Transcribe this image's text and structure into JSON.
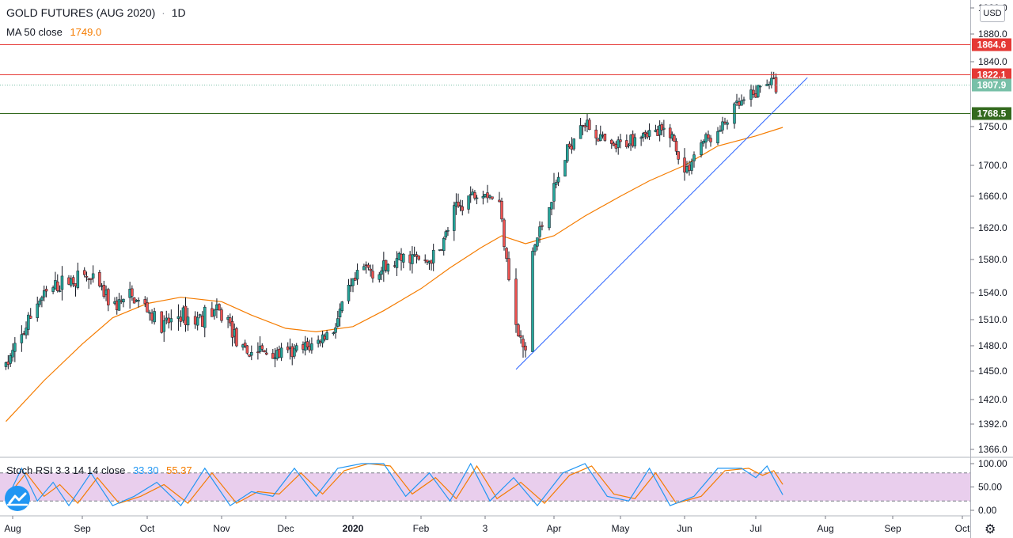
{
  "header": {
    "symbol": "GOLD FUTURES (AUG 2020)",
    "separator": "·",
    "interval": "1D",
    "ma_label": "MA 50 close",
    "ma_value": "1749.0",
    "stoch_label": "Stoch RSI 3 3 14 14 close",
    "stoch_k": "33.30",
    "stoch_d": "55.37"
  },
  "currency": "USD",
  "colors": {
    "up": "#26a69a",
    "down": "#ef5350",
    "ma": "#f57c00",
    "trendline": "#2962ff",
    "resistance": "#e53935",
    "support": "#33691e",
    "last_price": "#78c0a8",
    "stoch_k": "#2196f3",
    "stoch_d": "#f57c00",
    "stoch_band": "#e1bee7"
  },
  "chart_data": [
    {
      "type": "candlestick",
      "title": "GOLD FUTURES (AUG 2020)",
      "interval": "1D",
      "y_axis_ticks": [
        1920.0,
        1880.0,
        1840.0,
        1750.0,
        1700.0,
        1660.0,
        1620.0,
        1580.0,
        1540.0,
        1510.0,
        1480.0,
        1450.0,
        1420.0,
        1392.0,
        1366.0
      ],
      "ylim": [
        1366,
        1920
      ],
      "x_axis_ticks": [
        "Aug",
        "Sep",
        "Oct",
        "Nov",
        "Dec",
        "2020",
        "Feb",
        "3",
        "Apr",
        "May",
        "Jun",
        "Jul",
        "Aug",
        "Sep",
        "Oct"
      ],
      "x_axis_tick_dates": [
        "2019-08-01",
        "2019-09-01",
        "2019-10-01",
        "2019-11-01",
        "2019-12-01",
        "2020-01-01",
        "2020-02-01",
        "2020-03-03",
        "2020-04-01",
        "2020-05-01",
        "2020-06-01",
        "2020-07-01",
        "2020-08-01",
        "2020-09-01",
        "2020-10-01"
      ],
      "price_levels": [
        {
          "label": "1864.6",
          "value": 1864.6,
          "color": "#e53935"
        },
        {
          "label": "1822.1",
          "value": 1822.1,
          "color": "#e53935"
        },
        {
          "label": "1807.9",
          "value": 1807.9,
          "color": "#78c0a8",
          "kind": "last"
        },
        {
          "label": "1768.5",
          "value": 1768.5,
          "color": "#33691e"
        }
      ],
      "trendline": {
        "start": [
          "2020-03-16",
          1452
        ],
        "end": [
          "2020-07-24",
          1818
        ]
      },
      "close_series": {
        "anchors": [
          [
            "2019-07-29",
            1456
          ],
          [
            "2019-08-05",
            1490
          ],
          [
            "2019-08-12",
            1530
          ],
          [
            "2019-08-19",
            1545
          ],
          [
            "2019-08-26",
            1555
          ],
          [
            "2019-09-02",
            1560
          ],
          [
            "2019-09-09",
            1545
          ],
          [
            "2019-09-16",
            1525
          ],
          [
            "2019-09-23",
            1535
          ],
          [
            "2019-09-30",
            1525
          ],
          [
            "2019-10-07",
            1500
          ],
          [
            "2019-10-14",
            1515
          ],
          [
            "2019-10-21",
            1510
          ],
          [
            "2019-10-28",
            1520
          ],
          [
            "2019-11-04",
            1510
          ],
          [
            "2019-11-11",
            1470
          ],
          [
            "2019-11-18",
            1475
          ],
          [
            "2019-11-25",
            1470
          ],
          [
            "2019-12-02",
            1470
          ],
          [
            "2019-12-09",
            1475
          ],
          [
            "2019-12-16",
            1485
          ],
          [
            "2019-12-23",
            1500
          ],
          [
            "2019-12-30",
            1540
          ],
          [
            "2020-01-06",
            1570
          ],
          [
            "2020-01-13",
            1565
          ],
          [
            "2020-01-20",
            1575
          ],
          [
            "2020-01-27",
            1585
          ],
          [
            "2020-02-03",
            1575
          ],
          [
            "2020-02-10",
            1590
          ],
          [
            "2020-02-17",
            1640
          ],
          [
            "2020-02-24",
            1660
          ],
          [
            "2020-03-02",
            1670
          ],
          [
            "2020-03-09",
            1650
          ],
          [
            "2020-03-16",
            1500
          ],
          [
            "2020-03-20",
            1470
          ],
          [
            "2020-03-23",
            1590
          ],
          [
            "2020-03-30",
            1650
          ],
          [
            "2020-04-06",
            1710
          ],
          [
            "2020-04-13",
            1760
          ],
          [
            "2020-04-20",
            1740
          ],
          [
            "2020-04-27",
            1720
          ],
          [
            "2020-05-04",
            1730
          ],
          [
            "2020-05-11",
            1745
          ],
          [
            "2020-05-18",
            1740
          ],
          [
            "2020-05-25",
            1745
          ],
          [
            "2020-06-01",
            1690
          ],
          [
            "2020-06-08",
            1730
          ],
          [
            "2020-06-15",
            1740
          ],
          [
            "2020-06-22",
            1775
          ],
          [
            "2020-06-29",
            1790
          ],
          [
            "2020-07-06",
            1815
          ],
          [
            "2020-07-10",
            1807.9
          ]
        ]
      },
      "series": [
        {
          "name": "MA 50 close",
          "color": "#f57c00",
          "points": [
            [
              "2019-07-29",
              1395
            ],
            [
              "2019-08-15",
              1440
            ],
            [
              "2019-09-01",
              1482
            ],
            [
              "2019-09-15",
              1512
            ],
            [
              "2019-10-01",
              1528
            ],
            [
              "2019-10-15",
              1535
            ],
            [
              "2019-11-01",
              1530
            ],
            [
              "2019-11-15",
              1515
            ],
            [
              "2019-12-01",
              1500
            ],
            [
              "2019-12-15",
              1496
            ],
            [
              "2020-01-01",
              1502
            ],
            [
              "2020-01-15",
              1520
            ],
            [
              "2020-02-01",
              1545
            ],
            [
              "2020-02-15",
              1570
            ],
            [
              "2020-03-01",
              1595
            ],
            [
              "2020-03-10",
              1610
            ],
            [
              "2020-03-20",
              1600
            ],
            [
              "2020-04-01",
              1610
            ],
            [
              "2020-04-15",
              1635
            ],
            [
              "2020-05-01",
              1660
            ],
            [
              "2020-05-15",
              1680
            ],
            [
              "2020-06-01",
              1700
            ],
            [
              "2020-06-15",
              1725
            ],
            [
              "2020-07-01",
              1738
            ],
            [
              "2020-07-13",
              1749
            ]
          ]
        }
      ]
    },
    {
      "type": "line",
      "title": "Stoch RSI 3 3 14 14 close",
      "y_axis_ticks": [
        100.0,
        50.0,
        0.0
      ],
      "ylim": [
        0,
        100
      ],
      "bands": [
        20,
        80
      ],
      "series": [
        {
          "name": "K",
          "color": "#2196f3",
          "points": [
            [
              "2019-07-29",
              20
            ],
            [
              "2019-08-05",
              90
            ],
            [
              "2019-08-12",
              20
            ],
            [
              "2019-08-19",
              60
            ],
            [
              "2019-08-26",
              10
            ],
            [
              "2019-09-05",
              80
            ],
            [
              "2019-09-15",
              10
            ],
            [
              "2019-09-25",
              30
            ],
            [
              "2019-10-05",
              60
            ],
            [
              "2019-10-15",
              10
            ],
            [
              "2019-10-25",
              90
            ],
            [
              "2019-11-05",
              10
            ],
            [
              "2019-11-15",
              40
            ],
            [
              "2019-11-25",
              30
            ],
            [
              "2019-12-05",
              90
            ],
            [
              "2019-12-15",
              30
            ],
            [
              "2019-12-25",
              90
            ],
            [
              "2020-01-05",
              100
            ],
            [
              "2020-01-15",
              100
            ],
            [
              "2020-01-25",
              30
            ],
            [
              "2020-02-05",
              80
            ],
            [
              "2020-02-15",
              20
            ],
            [
              "2020-02-25",
              100
            ],
            [
              "2020-03-05",
              20
            ],
            [
              "2020-03-15",
              70
            ],
            [
              "2020-03-25",
              10
            ],
            [
              "2020-04-05",
              80
            ],
            [
              "2020-04-15",
              100
            ],
            [
              "2020-04-25",
              30
            ],
            [
              "2020-05-05",
              20
            ],
            [
              "2020-05-15",
              90
            ],
            [
              "2020-05-25",
              10
            ],
            [
              "2020-06-05",
              30
            ],
            [
              "2020-06-15",
              90
            ],
            [
              "2020-06-25",
              90
            ],
            [
              "2020-07-01",
              70
            ],
            [
              "2020-07-06",
              95
            ],
            [
              "2020-07-13",
              33.3
            ]
          ]
        },
        {
          "name": "D",
          "color": "#f57c00",
          "points": [
            [
              "2019-07-29",
              25
            ],
            [
              "2019-08-07",
              80
            ],
            [
              "2019-08-15",
              30
            ],
            [
              "2019-08-22",
              55
            ],
            [
              "2019-08-30",
              15
            ],
            [
              "2019-09-08",
              70
            ],
            [
              "2019-09-18",
              15
            ],
            [
              "2019-09-28",
              30
            ],
            [
              "2019-10-08",
              55
            ],
            [
              "2019-10-18",
              15
            ],
            [
              "2019-10-28",
              80
            ],
            [
              "2019-11-08",
              15
            ],
            [
              "2019-11-18",
              40
            ],
            [
              "2019-11-28",
              35
            ],
            [
              "2019-12-08",
              80
            ],
            [
              "2019-12-18",
              35
            ],
            [
              "2019-12-28",
              85
            ],
            [
              "2020-01-08",
              100
            ],
            [
              "2020-01-18",
              95
            ],
            [
              "2020-01-28",
              35
            ],
            [
              "2020-02-08",
              70
            ],
            [
              "2020-02-18",
              25
            ],
            [
              "2020-02-28",
              95
            ],
            [
              "2020-03-08",
              25
            ],
            [
              "2020-03-18",
              60
            ],
            [
              "2020-03-28",
              15
            ],
            [
              "2020-04-08",
              75
            ],
            [
              "2020-04-18",
              95
            ],
            [
              "2020-04-28",
              35
            ],
            [
              "2020-05-08",
              25
            ],
            [
              "2020-05-18",
              80
            ],
            [
              "2020-05-28",
              15
            ],
            [
              "2020-06-08",
              30
            ],
            [
              "2020-06-18",
              85
            ],
            [
              "2020-06-28",
              90
            ],
            [
              "2020-07-04",
              75
            ],
            [
              "2020-07-09",
              85
            ],
            [
              "2020-07-13",
              55.37
            ]
          ]
        }
      ]
    }
  ]
}
